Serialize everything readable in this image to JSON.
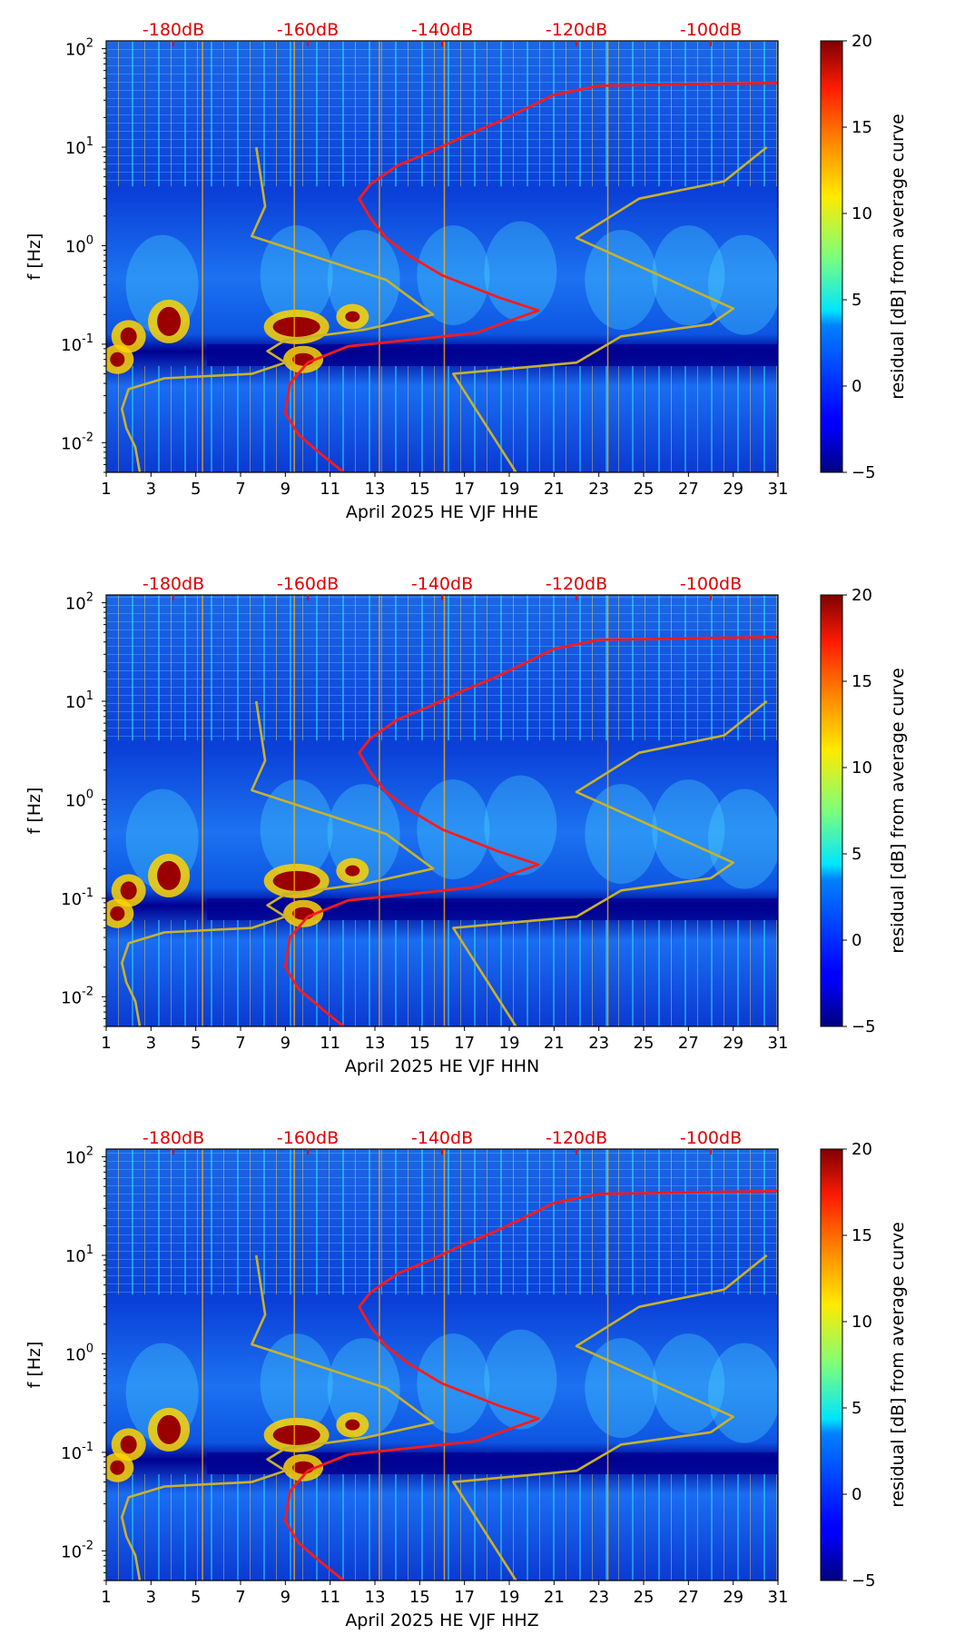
{
  "panels": [
    {
      "xlabel": "April 2025 HE VJF  HHE",
      "ylabel": "f [Hz]",
      "colorbar_label": "residual [dB] from average curve"
    },
    {
      "xlabel": "April 2025 HE VJF  HHN",
      "ylabel": "f [Hz]",
      "colorbar_label": "residual [dB] from average curve"
    },
    {
      "xlabel": "April 2025 HE VJF  HHZ",
      "ylabel": "f [Hz]",
      "colorbar_label": "residual [dB] from average curve"
    }
  ],
  "chart_data": {
    "type": "heatmap",
    "x_ticks": [
      "1",
      "3",
      "5",
      "7",
      "9",
      "11",
      "13",
      "15",
      "17",
      "19",
      "21",
      "23",
      "25",
      "27",
      "29",
      "31"
    ],
    "y_ticks": [
      {
        "exp": "-2",
        "value": 0.01
      },
      {
        "exp": "-1",
        "value": 0.1
      },
      {
        "exp": "0",
        "value": 1
      },
      {
        "exp": "1",
        "value": 10
      },
      {
        "exp": "2",
        "value": 100
      }
    ],
    "y_scale": "log",
    "ylim": [
      0.005,
      120
    ],
    "xlim": [
      1,
      31
    ],
    "top_axis_ticks": [
      {
        "label": "-180dB",
        "x": 4
      },
      {
        "label": "-160dB",
        "x": 10
      },
      {
        "label": "-140dB",
        "x": 16
      },
      {
        "label": "-120dB",
        "x": 22
      },
      {
        "label": "-100dB",
        "x": 28
      }
    ],
    "colorbar": {
      "range": [
        -5,
        20
      ],
      "ticks": [
        "20",
        "15",
        "10",
        "5",
        "0",
        "−5"
      ],
      "tick_values": [
        20,
        15,
        10,
        5,
        0,
        -5
      ],
      "colormap": "jet"
    },
    "colors": {
      "average_curve": "#ff1a1a",
      "noise_model": "#c8b22a",
      "top_axis": "#e00000"
    },
    "series": [
      {
        "points": [
          [
            11.6,
            0.005
          ],
          [
            10.5,
            0.008
          ],
          [
            9.6,
            0.012
          ],
          [
            9.0,
            0.02
          ],
          [
            9.2,
            0.04
          ],
          [
            10.0,
            0.065
          ],
          [
            11.8,
            0.095
          ],
          [
            14.5,
            0.11
          ],
          [
            17.5,
            0.13
          ],
          [
            20.3,
            0.22
          ],
          [
            18.5,
            0.3
          ],
          [
            16.0,
            0.5
          ],
          [
            14.5,
            0.8
          ],
          [
            13.5,
            1.2
          ],
          [
            12.8,
            1.9
          ],
          [
            12.3,
            3.0
          ],
          [
            12.8,
            4.2
          ],
          [
            14.0,
            6.5
          ],
          [
            15.5,
            9.0
          ],
          [
            17.0,
            13
          ],
          [
            18.5,
            18
          ],
          [
            19.8,
            25
          ],
          [
            21.0,
            34
          ],
          [
            23.0,
            42
          ],
          [
            31.0,
            45
          ]
        ]
      },
      {
        "segments": [
          [
            [
              2.5,
              0.005
            ],
            [
              2.3,
              0.009
            ],
            [
              1.9,
              0.014
            ],
            [
              1.7,
              0.022
            ],
            [
              2.0,
              0.035
            ],
            [
              3.6,
              0.045
            ],
            [
              7.5,
              0.05
            ],
            [
              9.0,
              0.065
            ],
            [
              8.2,
              0.085
            ],
            [
              9.0,
              0.11
            ],
            [
              12.5,
              0.14
            ],
            [
              15.6,
              0.2
            ],
            [
              13.5,
              0.45
            ],
            [
              7.5,
              1.25
            ],
            [
              8.1,
              2.5
            ],
            [
              7.7,
              10
            ]
          ],
          [
            [
              19.3,
              0.005
            ],
            [
              16.5,
              0.05
            ],
            [
              22.0,
              0.065
            ],
            [
              24.0,
              0.12
            ],
            [
              28.0,
              0.16
            ],
            [
              29.0,
              0.23
            ],
            [
              22.0,
              1.2
            ],
            [
              24.8,
              3.0
            ],
            [
              28.6,
              4.5
            ],
            [
              30.5,
              10
            ]
          ]
        ]
      }
    ]
  }
}
